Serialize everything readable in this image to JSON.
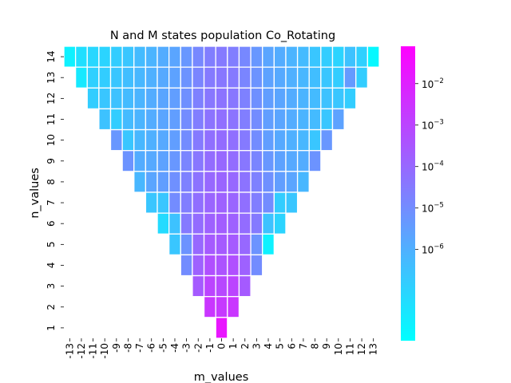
{
  "chart_data": {
    "type": "heatmap",
    "title": "N and M states population Co_Rotating",
    "xlabel": "m_values",
    "ylabel": "n_values",
    "x_categories": [
      -13,
      -12,
      -11,
      -10,
      -9,
      -8,
      -7,
      -6,
      -5,
      -4,
      -3,
      -2,
      -1,
      0,
      1,
      2,
      3,
      4,
      5,
      6,
      7,
      8,
      9,
      10,
      11,
      12,
      13
    ],
    "y_categories": [
      14,
      13,
      12,
      11,
      10,
      9,
      8,
      7,
      6,
      5,
      4,
      3,
      2,
      1
    ],
    "rows": [
      {
        "n": 14,
        "m_min": -13,
        "log10_values": [
          -7.8,
          -7.3,
          -7.1,
          -7.0,
          -6.8,
          -6.6,
          -6.3,
          -6.1,
          -5.9,
          -5.7,
          -5.3,
          -4.9,
          -4.6,
          -4.5,
          -4.6,
          -4.9,
          -5.3,
          -5.7,
          -5.9,
          -6.1,
          -6.3,
          -6.6,
          -6.8,
          -7.0,
          -6.5,
          -6.9,
          -8.0
        ]
      },
      {
        "n": 13,
        "m_min": -12,
        "log10_values": [
          -7.6,
          -6.9,
          -6.8,
          -6.6,
          -6.4,
          -6.2,
          -6.0,
          -5.8,
          -5.6,
          -5.2,
          -4.8,
          -4.5,
          -4.4,
          -4.5,
          -4.8,
          -5.2,
          -5.6,
          -5.8,
          -6.0,
          -6.2,
          -6.4,
          -6.6,
          -6.8,
          -5.4,
          -6.8
        ]
      },
      {
        "n": 12,
        "m_min": -11,
        "log10_values": [
          -6.8,
          -6.6,
          -6.5,
          -6.3,
          -6.1,
          -5.9,
          -5.7,
          -5.5,
          -5.1,
          -4.7,
          -4.4,
          -4.3,
          -4.4,
          -4.7,
          -5.1,
          -5.5,
          -5.7,
          -5.9,
          -6.1,
          -6.3,
          -6.5,
          -6.6,
          -6.8
        ]
      },
      {
        "n": 11,
        "m_min": -10,
        "log10_values": [
          -6.5,
          -6.8,
          -6.3,
          -6.1,
          -5.9,
          -5.7,
          -5.5,
          -5.0,
          -4.6,
          -4.3,
          -4.2,
          -4.3,
          -4.6,
          -5.0,
          -5.5,
          -5.7,
          -5.9,
          -6.1,
          -6.3,
          -6.6,
          -5.6
        ]
      },
      {
        "n": 10,
        "m_min": -9,
        "log10_values": [
          -5.3,
          -6.6,
          -6.2,
          -6.0,
          -5.8,
          -5.5,
          -5.0,
          -4.5,
          -4.2,
          -4.1,
          -4.2,
          -4.5,
          -5.0,
          -5.5,
          -5.8,
          -6.0,
          -6.2,
          -6.6,
          -5.3
        ]
      },
      {
        "n": 9,
        "m_min": -8,
        "log10_values": [
          -5.2,
          -5.9,
          -5.8,
          -5.6,
          -5.3,
          -4.8,
          -4.4,
          -4.1,
          -4.0,
          -4.1,
          -4.4,
          -4.8,
          -5.3,
          -5.6,
          -5.8,
          -5.9,
          -5.2
        ]
      },
      {
        "n": 8,
        "m_min": -7,
        "log10_values": [
          -6.2,
          -5.7,
          -5.5,
          -5.1,
          -4.7,
          -4.3,
          -4.0,
          -3.9,
          -4.0,
          -4.3,
          -4.7,
          -5.1,
          -5.5,
          -5.7,
          -6.2
        ]
      },
      {
        "n": 7,
        "m_min": -6,
        "log10_values": [
          -6.6,
          -6.6,
          -5.0,
          -4.6,
          -4.2,
          -3.9,
          -3.8,
          -3.9,
          -4.2,
          -4.6,
          -5.0,
          -6.8,
          -6.6
        ]
      },
      {
        "n": 6,
        "m_min": -5,
        "log10_values": [
          -7.2,
          -6.5,
          -4.5,
          -4.1,
          -3.8,
          -3.7,
          -3.8,
          -4.1,
          -4.5,
          -6.5,
          -7.0
        ]
      },
      {
        "n": 5,
        "m_min": -4,
        "log10_values": [
          -6.6,
          -5.2,
          -4.0,
          -3.6,
          -3.6,
          -3.6,
          -4.0,
          -5.2,
          -7.8
        ]
      },
      {
        "n": 4,
        "m_min": -3,
        "log10_values": [
          -5.0,
          -3.8,
          -3.3,
          -3.4,
          -3.3,
          -3.8,
          -5.0
        ]
      },
      {
        "n": 3,
        "m_min": -2,
        "log10_values": [
          -3.6,
          -3.0,
          -3.1,
          -3.0,
          -3.6
        ]
      },
      {
        "n": 2,
        "m_min": -1,
        "log10_values": [
          -2.6,
          -2.7,
          -2.6
        ]
      },
      {
        "n": 1,
        "m_min": 0,
        "log10_values": [
          -1.7
        ]
      }
    ],
    "colormap": [
      "#00ffff",
      "#ff00ff"
    ],
    "colorbar": {
      "scale": "log",
      "tick_labels": [
        {
          "value": -6,
          "label": "10",
          "exp": "−6"
        },
        {
          "value": -5,
          "label": "10",
          "exp": "−5"
        },
        {
          "value": -4,
          "label": "10",
          "exp": "−4"
        },
        {
          "value": -3,
          "label": "10",
          "exp": "−3"
        },
        {
          "value": -2,
          "label": "10",
          "exp": "−2"
        }
      ],
      "range_log10": [
        -8.2,
        -1.1
      ]
    },
    "grid": false,
    "cell_edge_color": "#ffffff"
  }
}
